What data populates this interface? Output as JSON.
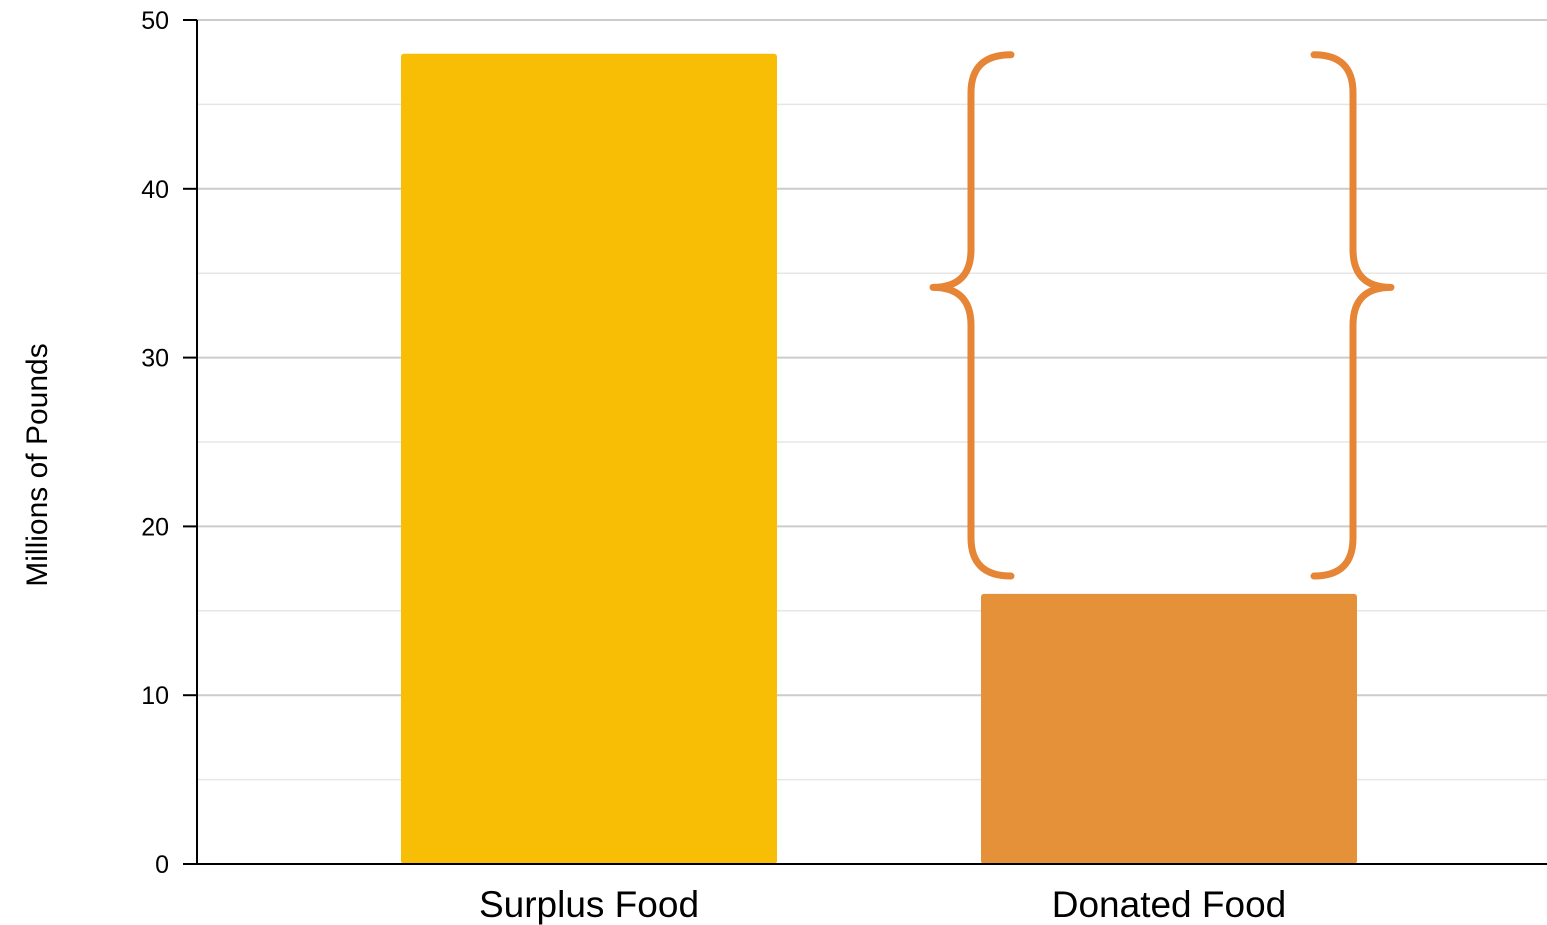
{
  "chart_data": {
    "type": "bar",
    "categories": [
      "Surplus Food",
      "Donated Food"
    ],
    "values": [
      48,
      16
    ],
    "ylabel": "Millions of Pounds",
    "xlabel": "",
    "ylim": [
      0,
      50
    ],
    "yticks": [
      "0",
      "10",
      "20",
      "30",
      "40",
      "50"
    ],
    "grid": true,
    "colors": [
      "#F8BE06",
      "#E5913A"
    ],
    "annotation": {
      "type": "braces",
      "color": "#E58535",
      "category": "Donated Food",
      "span": [
        17,
        48
      ]
    }
  }
}
